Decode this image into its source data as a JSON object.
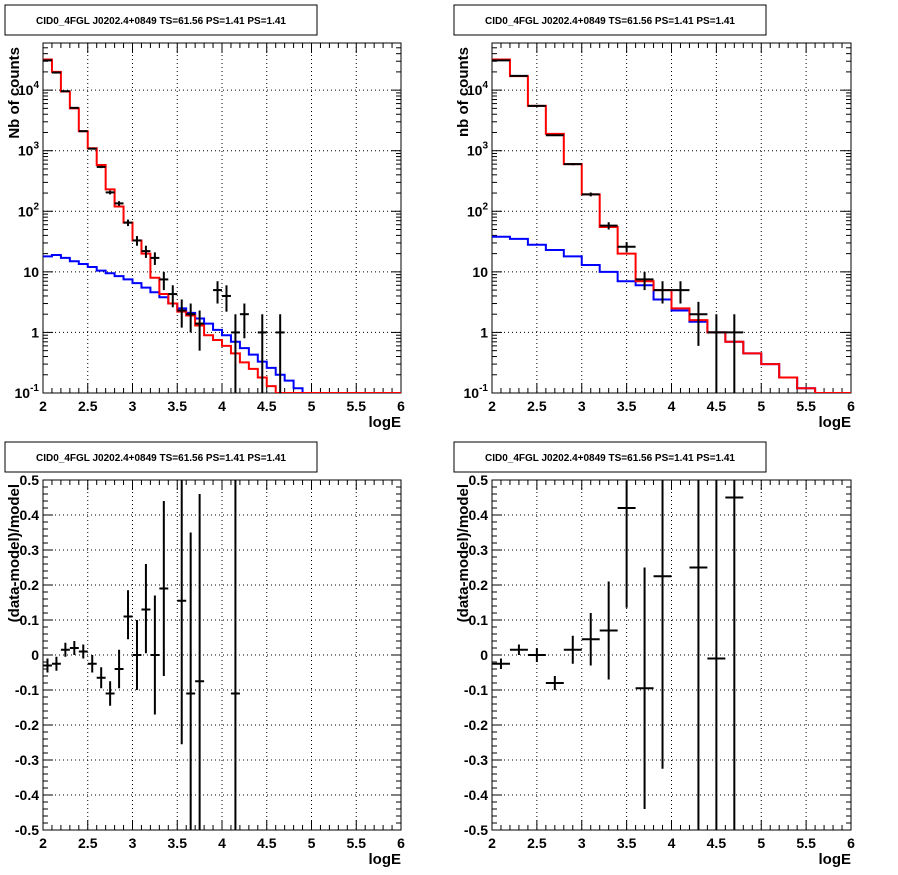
{
  "chart_data": [
    {
      "type": "line",
      "title": "CID0_4FGL J0202.4+0849 TS=61.56 PS=1.41 PS=1.41",
      "xlabel": "logE",
      "ylabel": "Nb of counts",
      "xlim": [
        2,
        6
      ],
      "ylim": [
        0.1,
        60000
      ],
      "yscale": "log",
      "grid": true,
      "x_tick_labels": [
        "2",
        "2.5",
        "3",
        "3.5",
        "4",
        "4.5",
        "5",
        "5.5",
        "6"
      ],
      "y_tick_labels": [
        "10^-1",
        "1",
        "10",
        "10^2",
        "10^3",
        "10^4"
      ],
      "bin_edges": [
        2.0,
        2.1,
        2.2,
        2.3,
        2.4,
        2.5,
        2.6,
        2.7,
        2.8,
        2.9,
        3.0,
        3.1,
        3.2,
        3.3,
        3.4,
        3.5,
        3.6,
        3.7,
        3.8,
        3.9,
        4.0,
        4.1,
        4.2,
        4.3,
        4.4,
        4.5,
        4.6,
        4.7,
        4.8,
        4.9,
        5.0,
        5.1,
        5.2,
        5.3,
        5.4,
        5.5,
        5.6,
        5.7,
        5.8,
        5.9,
        6.0
      ],
      "series": [
        {
          "color": "#ff0000",
          "values": [
            32000,
            20000,
            9500,
            5000,
            2100,
            1100,
            580,
            230,
            120,
            65,
            33,
            20,
            8,
            4.3,
            3.0,
            2.2,
            1.9,
            1.3,
            0.9,
            0.75,
            0.6,
            0.45,
            0.32,
            0.25,
            0.18,
            0.13,
            0.1,
            0.1,
            0.1,
            0.1,
            0.1,
            0.1,
            0.1,
            0.1,
            0.1,
            0.1,
            0.1,
            0.1,
            0.1,
            0.1
          ]
        },
        {
          "color": "#0000ff",
          "values": [
            18,
            19,
            17,
            15,
            13.5,
            12,
            10.5,
            9.5,
            8.5,
            7.5,
            6.5,
            5.5,
            4.6,
            3.8,
            3.0,
            2.5,
            2.1,
            1.7,
            1.4,
            1.1,
            0.9,
            0.7,
            0.55,
            0.43,
            0.33,
            0.26,
            0.2,
            0.16,
            0.12,
            0.1,
            0.1,
            0.1,
            0.1,
            0.1,
            0.1,
            0.1,
            0.1,
            0.1,
            0.1,
            0.1
          ]
        }
      ],
      "points": [
        {
          "x": 2.05,
          "y": 31000,
          "ylo": 30800,
          "yhi": 31200
        },
        {
          "x": 2.15,
          "y": 19500,
          "ylo": 19400,
          "yhi": 19600
        },
        {
          "x": 2.25,
          "y": 9600,
          "ylo": 9500,
          "yhi": 9700
        },
        {
          "x": 2.35,
          "y": 5100,
          "ylo": 5050,
          "yhi": 5150
        },
        {
          "x": 2.45,
          "y": 2100,
          "ylo": 2050,
          "yhi": 2150
        },
        {
          "x": 2.55,
          "y": 1080,
          "ylo": 1050,
          "yhi": 1110
        },
        {
          "x": 2.65,
          "y": 540,
          "ylo": 515,
          "yhi": 565
        },
        {
          "x": 2.75,
          "y": 205,
          "ylo": 190,
          "yhi": 220
        },
        {
          "x": 2.85,
          "y": 135,
          "ylo": 123,
          "yhi": 147
        },
        {
          "x": 2.95,
          "y": 65,
          "ylo": 57,
          "yhi": 73
        },
        {
          "x": 3.05,
          "y": 33,
          "ylo": 27,
          "yhi": 39
        },
        {
          "x": 3.15,
          "y": 22,
          "ylo": 17,
          "yhi": 27
        },
        {
          "x": 3.25,
          "y": 17,
          "ylo": 13,
          "yhi": 21
        },
        {
          "x": 3.35,
          "y": 7.5,
          "ylo": 5,
          "yhi": 10
        },
        {
          "x": 3.45,
          "y": 4.3,
          "ylo": 2.6,
          "yhi": 6
        },
        {
          "x": 3.55,
          "y": 2.3,
          "ylo": 1.2,
          "yhi": 3.5
        },
        {
          "x": 3.65,
          "y": 2.0,
          "ylo": 1.0,
          "yhi": 3.0
        },
        {
          "x": 3.75,
          "y": 1.4,
          "ylo": 0.5,
          "yhi": 2.3
        },
        {
          "x": 3.95,
          "y": 5.0,
          "ylo": 3.0,
          "yhi": 7.0
        },
        {
          "x": 4.05,
          "y": 4.0,
          "ylo": 2.2,
          "yhi": 6.0
        },
        {
          "x": 4.15,
          "y": 1.0,
          "ylo": 0.1,
          "yhi": 2.0
        },
        {
          "x": 4.25,
          "y": 2.0,
          "ylo": 0.8,
          "yhi": 3.0
        },
        {
          "x": 4.45,
          "y": 1.0,
          "ylo": 0.1,
          "yhi": 2.0
        },
        {
          "x": 4.65,
          "y": 1.0,
          "ylo": 0.1,
          "yhi": 2.0
        }
      ]
    },
    {
      "type": "line",
      "title": "CID0_4FGL J0202.4+0849 TS=61.56 PS=1.41 PS=1.41",
      "xlabel": "logE",
      "ylabel": "nb of counts",
      "xlim": [
        2,
        6
      ],
      "ylim": [
        0.1,
        60000
      ],
      "yscale": "log",
      "grid": true,
      "x_tick_labels": [
        "2",
        "2.5",
        "3",
        "3.5",
        "4",
        "4.5",
        "5",
        "5.5",
        "6"
      ],
      "y_tick_labels": [
        "10^-1",
        "1",
        "10",
        "10^2",
        "10^3",
        "10^4"
      ],
      "bin_edges": [
        2.0,
        2.2,
        2.4,
        2.6,
        2.8,
        3.0,
        3.2,
        3.4,
        3.6,
        3.8,
        4.0,
        4.2,
        4.4,
        4.6,
        4.8,
        5.0,
        5.2,
        5.4,
        5.6,
        5.8,
        6.0
      ],
      "series": [
        {
          "color": "#ff0000",
          "values": [
            32000,
            17000,
            5500,
            1900,
            600,
            190,
            55,
            20,
            7,
            5,
            2.5,
            1.6,
            1.0,
            0.7,
            0.45,
            0.3,
            0.18,
            0.12,
            0.1,
            0.1
          ]
        },
        {
          "color": "#0000ff",
          "values": [
            38,
            35,
            28,
            23,
            18,
            13,
            10,
            7,
            6,
            3.5,
            2.3,
            1.5,
            1.0,
            0.7,
            0.45,
            0.3,
            0.18,
            0.12,
            0.1,
            0.1
          ]
        }
      ],
      "points": [
        {
          "x": 2.1,
          "y": 31000,
          "ylo": 30800,
          "yhi": 31200
        },
        {
          "x": 2.3,
          "y": 17200,
          "ylo": 17000,
          "yhi": 17400
        },
        {
          "x": 2.5,
          "y": 5500,
          "ylo": 5400,
          "yhi": 5600
        },
        {
          "x": 2.7,
          "y": 1800,
          "ylo": 1750,
          "yhi": 1850
        },
        {
          "x": 2.9,
          "y": 600,
          "ylo": 575,
          "yhi": 625
        },
        {
          "x": 3.1,
          "y": 190,
          "ylo": 176,
          "yhi": 204
        },
        {
          "x": 3.3,
          "y": 58,
          "ylo": 50,
          "yhi": 66
        },
        {
          "x": 3.5,
          "y": 26,
          "ylo": 21,
          "yhi": 31
        },
        {
          "x": 3.7,
          "y": 7.5,
          "ylo": 5,
          "yhi": 10
        },
        {
          "x": 3.9,
          "y": 5.0,
          "ylo": 3.0,
          "yhi": 7.0
        },
        {
          "x": 4.1,
          "y": 5.0,
          "ylo": 3.0,
          "yhi": 7.0
        },
        {
          "x": 4.3,
          "y": 2.0,
          "ylo": 0.6,
          "yhi": 3.2
        },
        {
          "x": 4.5,
          "y": 1.0,
          "ylo": 0.1,
          "yhi": 2.0
        },
        {
          "x": 4.7,
          "y": 1.0,
          "ylo": 0.1,
          "yhi": 2.0
        }
      ]
    },
    {
      "type": "scatter",
      "title": "CID0_4FGL J0202.4+0849 TS=61.56 PS=1.41 PS=1.41",
      "xlabel": "logE",
      "ylabel": "(data-model)/model",
      "xlim": [
        2,
        6
      ],
      "ylim": [
        -0.5,
        0.5
      ],
      "grid": true,
      "x_tick_labels": [
        "2",
        "2.5",
        "3",
        "3.5",
        "4",
        "4.5",
        "5",
        "5.5",
        "6"
      ],
      "y_tick_labels": [
        "-0.5",
        "-0.4",
        "-0.3",
        "-0.2",
        "-0.1",
        "0",
        "0.1",
        "0.2",
        "0.3",
        "0.4",
        "0.5"
      ],
      "xerr": 0.05,
      "points": [
        {
          "x": 2.05,
          "y": -0.03,
          "ylo": -0.05,
          "yhi": -0.01
        },
        {
          "x": 2.15,
          "y": -0.025,
          "ylo": -0.045,
          "yhi": -0.005
        },
        {
          "x": 2.25,
          "y": 0.015,
          "ylo": -0.005,
          "yhi": 0.035
        },
        {
          "x": 2.35,
          "y": 0.02,
          "ylo": 0.0,
          "yhi": 0.04
        },
        {
          "x": 2.45,
          "y": 0.01,
          "ylo": -0.01,
          "yhi": 0.03
        },
        {
          "x": 2.55,
          "y": -0.025,
          "ylo": -0.05,
          "yhi": 0.0
        },
        {
          "x": 2.65,
          "y": -0.065,
          "ylo": -0.095,
          "yhi": -0.035
        },
        {
          "x": 2.75,
          "y": -0.11,
          "ylo": -0.145,
          "yhi": -0.075
        },
        {
          "x": 2.85,
          "y": -0.04,
          "ylo": -0.095,
          "yhi": 0.015
        },
        {
          "x": 2.95,
          "y": 0.11,
          "ylo": 0.045,
          "yhi": 0.185
        },
        {
          "x": 3.05,
          "y": 0.0,
          "ylo": -0.1,
          "yhi": 0.1
        },
        {
          "x": 3.15,
          "y": 0.13,
          "ylo": 0.005,
          "yhi": 0.26
        },
        {
          "x": 3.25,
          "y": 0.0,
          "ylo": -0.17,
          "yhi": 0.17
        },
        {
          "x": 3.35,
          "y": 0.19,
          "ylo": -0.06,
          "yhi": 0.44
        },
        {
          "x": 3.55,
          "y": 0.155,
          "ylo": -0.255,
          "yhi": 0.5
        },
        {
          "x": 3.65,
          "y": -0.11,
          "ylo": -0.5,
          "yhi": 0.35
        },
        {
          "x": 3.75,
          "y": -0.075,
          "ylo": -0.5,
          "yhi": 0.46
        },
        {
          "x": 4.15,
          "y": -0.11,
          "ylo": -0.5,
          "yhi": 0.5
        }
      ]
    },
    {
      "type": "scatter",
      "title": "CID0_4FGL J0202.4+0849 TS=61.56 PS=1.41 PS=1.41",
      "xlabel": "logE",
      "ylabel": "(data-model)/model",
      "xlim": [
        2,
        6
      ],
      "ylim": [
        -0.5,
        0.5
      ],
      "grid": true,
      "x_tick_labels": [
        "2",
        "2.5",
        "3",
        "3.5",
        "4",
        "4.5",
        "5",
        "5.5",
        "6"
      ],
      "y_tick_labels": [
        "-0.5",
        "-0.4",
        "-0.3",
        "-0.2",
        "-0.1",
        "0",
        "0.1",
        "0.2",
        "0.3",
        "0.4",
        "0.5"
      ],
      "xerr": 0.1,
      "points": [
        {
          "x": 2.1,
          "y": -0.025,
          "ylo": -0.04,
          "yhi": -0.01
        },
        {
          "x": 2.3,
          "y": 0.015,
          "ylo": 0.0,
          "yhi": 0.03
        },
        {
          "x": 2.5,
          "y": 0.0,
          "ylo": -0.02,
          "yhi": 0.02
        },
        {
          "x": 2.7,
          "y": -0.08,
          "ylo": -0.1,
          "yhi": -0.06
        },
        {
          "x": 2.9,
          "y": 0.015,
          "ylo": -0.025,
          "yhi": 0.055
        },
        {
          "x": 3.1,
          "y": 0.045,
          "ylo": -0.03,
          "yhi": 0.12
        },
        {
          "x": 3.3,
          "y": 0.07,
          "ylo": -0.07,
          "yhi": 0.21
        },
        {
          "x": 3.5,
          "y": 0.42,
          "ylo": 0.135,
          "yhi": 0.5
        },
        {
          "x": 3.7,
          "y": -0.095,
          "ylo": -0.44,
          "yhi": 0.25
        },
        {
          "x": 3.9,
          "y": 0.225,
          "ylo": -0.325,
          "yhi": 0.5
        },
        {
          "x": 4.3,
          "y": 0.25,
          "ylo": -0.5,
          "yhi": 0.5
        },
        {
          "x": 4.5,
          "y": -0.01,
          "ylo": -0.5,
          "yhi": 0.5
        },
        {
          "x": 4.7,
          "y": 0.45,
          "ylo": -0.5,
          "yhi": 0.5
        }
      ]
    }
  ]
}
